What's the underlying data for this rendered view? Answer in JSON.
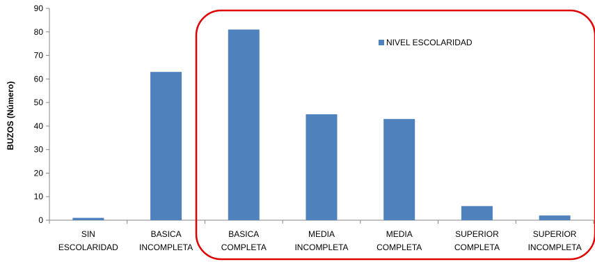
{
  "chart_data": {
    "type": "bar",
    "categories": [
      [
        "SIN",
        "ESCOLARIDAD"
      ],
      [
        "BASICA",
        "INCOMPLETA"
      ],
      [
        "BASICA",
        "COMPLETA"
      ],
      [
        "MEDIA",
        "INCOMPLETA"
      ],
      [
        "MEDIA",
        "COMPLETA"
      ],
      [
        "SUPERIOR",
        "COMPLETA"
      ],
      [
        "SUPERIOR",
        "INCOMPLETA"
      ]
    ],
    "series": [
      {
        "name": "NIVEL ESCOLARIDAD",
        "values": [
          1,
          63,
          81,
          45,
          43,
          6,
          2
        ]
      }
    ],
    "ylabel": "BUZOS (Número)",
    "xlabel": "",
    "ylim": [
      0,
      90
    ],
    "yticks": [
      0,
      10,
      20,
      30,
      40,
      50,
      60,
      70,
      80,
      90
    ],
    "grid": false,
    "legend_position": "top-right inside",
    "colors": {
      "bar": "#4f81bd",
      "highlight_box": "#e00000",
      "axis": "#868686"
    },
    "annotation": "red rounded rectangle highlighting categories BASICA COMPLETA through SUPERIOR INCOMPLETA"
  }
}
